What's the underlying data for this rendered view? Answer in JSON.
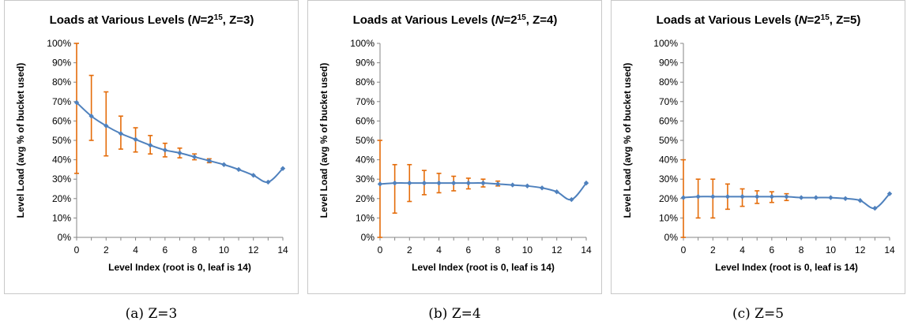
{
  "chart_data": [
    {
      "type": "line",
      "title_prefix": "Loads at Various Levels (",
      "title_n": "N",
      "title_eq": "=2",
      "title_exp": "15",
      "title_suffix": ", Z=3)",
      "xlabel": "Level Index (root is 0, leaf is 14)",
      "ylabel": "Level Load (avg % of bucket used)",
      "xlim": [
        0,
        14
      ],
      "ylim": [
        0,
        100
      ],
      "x_ticks": [
        0,
        2,
        4,
        6,
        8,
        10,
        12,
        14
      ],
      "y_ticks": [
        "0%",
        "10%",
        "20%",
        "30%",
        "40%",
        "50%",
        "60%",
        "70%",
        "80%",
        "90%",
        "100%"
      ],
      "grid": false,
      "series": [
        {
          "x": [
            0,
            1,
            2,
            3,
            4,
            5,
            6,
            7,
            8,
            9,
            10,
            11,
            12,
            13,
            14
          ],
          "values": [
            69.5,
            62.5,
            57.5,
            53.5,
            50.5,
            47.5,
            45,
            43.5,
            41.5,
            39.5,
            37.5,
            35,
            32,
            28.5,
            35.5
          ],
          "err_low": [
            33,
            50,
            42,
            45.5,
            44,
            43,
            41.5,
            41,
            40,
            38.5,
            null,
            null,
            null,
            null,
            null
          ],
          "err_high": [
            100,
            83.5,
            75,
            62.5,
            56.5,
            52.5,
            48.5,
            46,
            43,
            40.5,
            null,
            null,
            null,
            null,
            null
          ]
        }
      ],
      "caption": "(a)  Z=3"
    },
    {
      "type": "line",
      "title_prefix": "Loads at Various Levels (",
      "title_n": "N",
      "title_eq": "=2",
      "title_exp": "15",
      "title_suffix": ", Z=4)",
      "xlabel": "Level Index (root is 0, leaf is 14)",
      "ylabel": "Level Load (avg % of bucket used)",
      "xlim": [
        0,
        14
      ],
      "ylim": [
        0,
        100
      ],
      "x_ticks": [
        0,
        2,
        4,
        6,
        8,
        10,
        12,
        14
      ],
      "y_ticks": [
        "0%",
        "10%",
        "20%",
        "30%",
        "40%",
        "50%",
        "60%",
        "70%",
        "80%",
        "90%",
        "100%"
      ],
      "grid": false,
      "series": [
        {
          "x": [
            0,
            1,
            2,
            3,
            4,
            5,
            6,
            7,
            8,
            9,
            10,
            11,
            12,
            13,
            14
          ],
          "values": [
            27.5,
            28,
            28,
            28,
            28,
            28,
            28,
            28,
            27.5,
            27,
            26.5,
            25.5,
            23.5,
            19.5,
            28
          ],
          "err_low": [
            0,
            12.5,
            18.5,
            22,
            23,
            24,
            25,
            26,
            26.5,
            null,
            null,
            null,
            null,
            null,
            null
          ],
          "err_high": [
            50,
            37.5,
            37.5,
            34.5,
            33,
            31.5,
            30.5,
            30,
            29,
            null,
            null,
            null,
            null,
            null,
            null
          ]
        }
      ],
      "caption": "(b)  Z=4"
    },
    {
      "type": "line",
      "title_prefix": "Loads at Various Levels (",
      "title_n": "N",
      "title_eq": "=2",
      "title_exp": "15",
      "title_suffix": ", Z=5)",
      "xlabel": "Level Index (root is 0, leaf is 14)",
      "ylabel": "Level Load (avg % of bucket used)",
      "xlim": [
        0,
        14
      ],
      "ylim": [
        0,
        100
      ],
      "x_ticks": [
        0,
        2,
        4,
        6,
        8,
        10,
        12,
        14
      ],
      "y_ticks": [
        "0%",
        "10%",
        "20%",
        "30%",
        "40%",
        "50%",
        "60%",
        "70%",
        "80%",
        "90%",
        "100%"
      ],
      "grid": false,
      "series": [
        {
          "x": [
            0,
            1,
            2,
            3,
            4,
            5,
            6,
            7,
            8,
            9,
            10,
            11,
            12,
            13,
            14
          ],
          "values": [
            20.5,
            21,
            21,
            21,
            21,
            21,
            21,
            21,
            20.5,
            20.5,
            20.5,
            20,
            19,
            15,
            22.5
          ],
          "err_low": [
            0,
            10,
            10,
            14.5,
            16,
            17.5,
            18,
            19,
            null,
            null,
            null,
            null,
            null,
            null,
            null
          ],
          "err_high": [
            40,
            30,
            30,
            27.5,
            25,
            24,
            23.5,
            22.5,
            null,
            null,
            null,
            null,
            null,
            null,
            null
          ]
        }
      ],
      "caption": "(c)  Z=5"
    }
  ],
  "colors": {
    "line": "#4f81bd",
    "marker": "#4f81bd",
    "error_bar": "#e46c0a",
    "axis": "#868686",
    "text": "#000000",
    "panel_border": "#c8c8c8"
  }
}
